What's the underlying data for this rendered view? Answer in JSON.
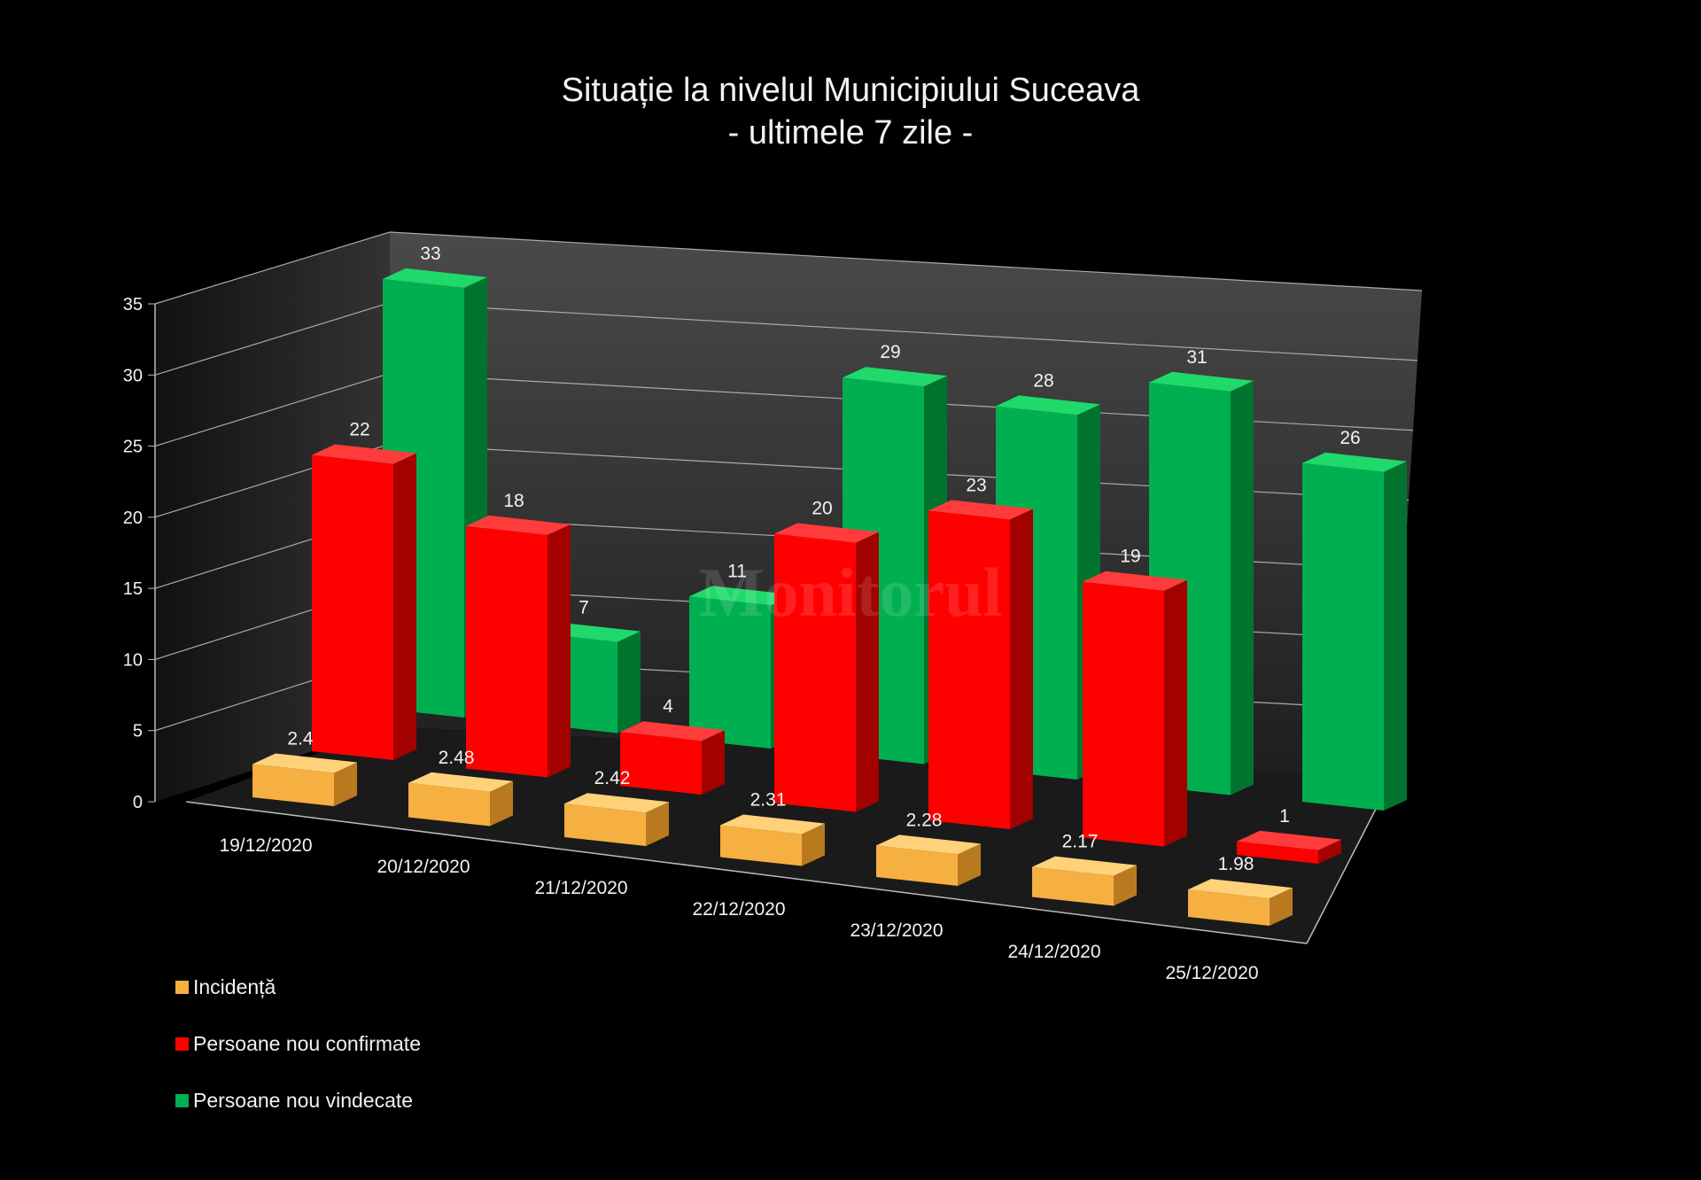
{
  "chart_data": {
    "type": "bar",
    "subtype": "3d-clustered-depth",
    "title": "Situație la nivelul Municipiului Suceava",
    "subtitle": "- ultimele 7 zile -",
    "categories": [
      "19/12/2020",
      "20/12/2020",
      "21/12/2020",
      "22/12/2020",
      "23/12/2020",
      "24/12/2020",
      "25/12/2020"
    ],
    "series": [
      {
        "name": "Incidență",
        "color": "#f5b041",
        "values": [
          2.4,
          2.48,
          2.42,
          2.31,
          2.28,
          2.17,
          1.98
        ],
        "labels": [
          "2.4",
          "2.48",
          "2.42",
          "2.31",
          "2.28",
          "2.17",
          "1.98"
        ]
      },
      {
        "name": "Persoane nou confirmate",
        "color": "#ff0000",
        "values": [
          22,
          18,
          4,
          20,
          23,
          19,
          1
        ],
        "labels": [
          "22",
          "18",
          "4",
          "20",
          "23",
          "19",
          "1"
        ]
      },
      {
        "name": "Persoane nou vindecate",
        "color": "#00b050",
        "values": [
          33,
          7,
          11,
          29,
          28,
          31,
          26
        ],
        "labels": [
          "33",
          "7",
          "11",
          "29",
          "28",
          "31",
          "26"
        ]
      }
    ],
    "yticks": [
      "0",
      "5",
      "10",
      "15",
      "20",
      "25",
      "30",
      "35"
    ],
    "ylim": [
      0,
      35
    ],
    "grid": true,
    "legend_position": "bottom-left",
    "background": "#000000",
    "watermark": "Monitorul"
  }
}
